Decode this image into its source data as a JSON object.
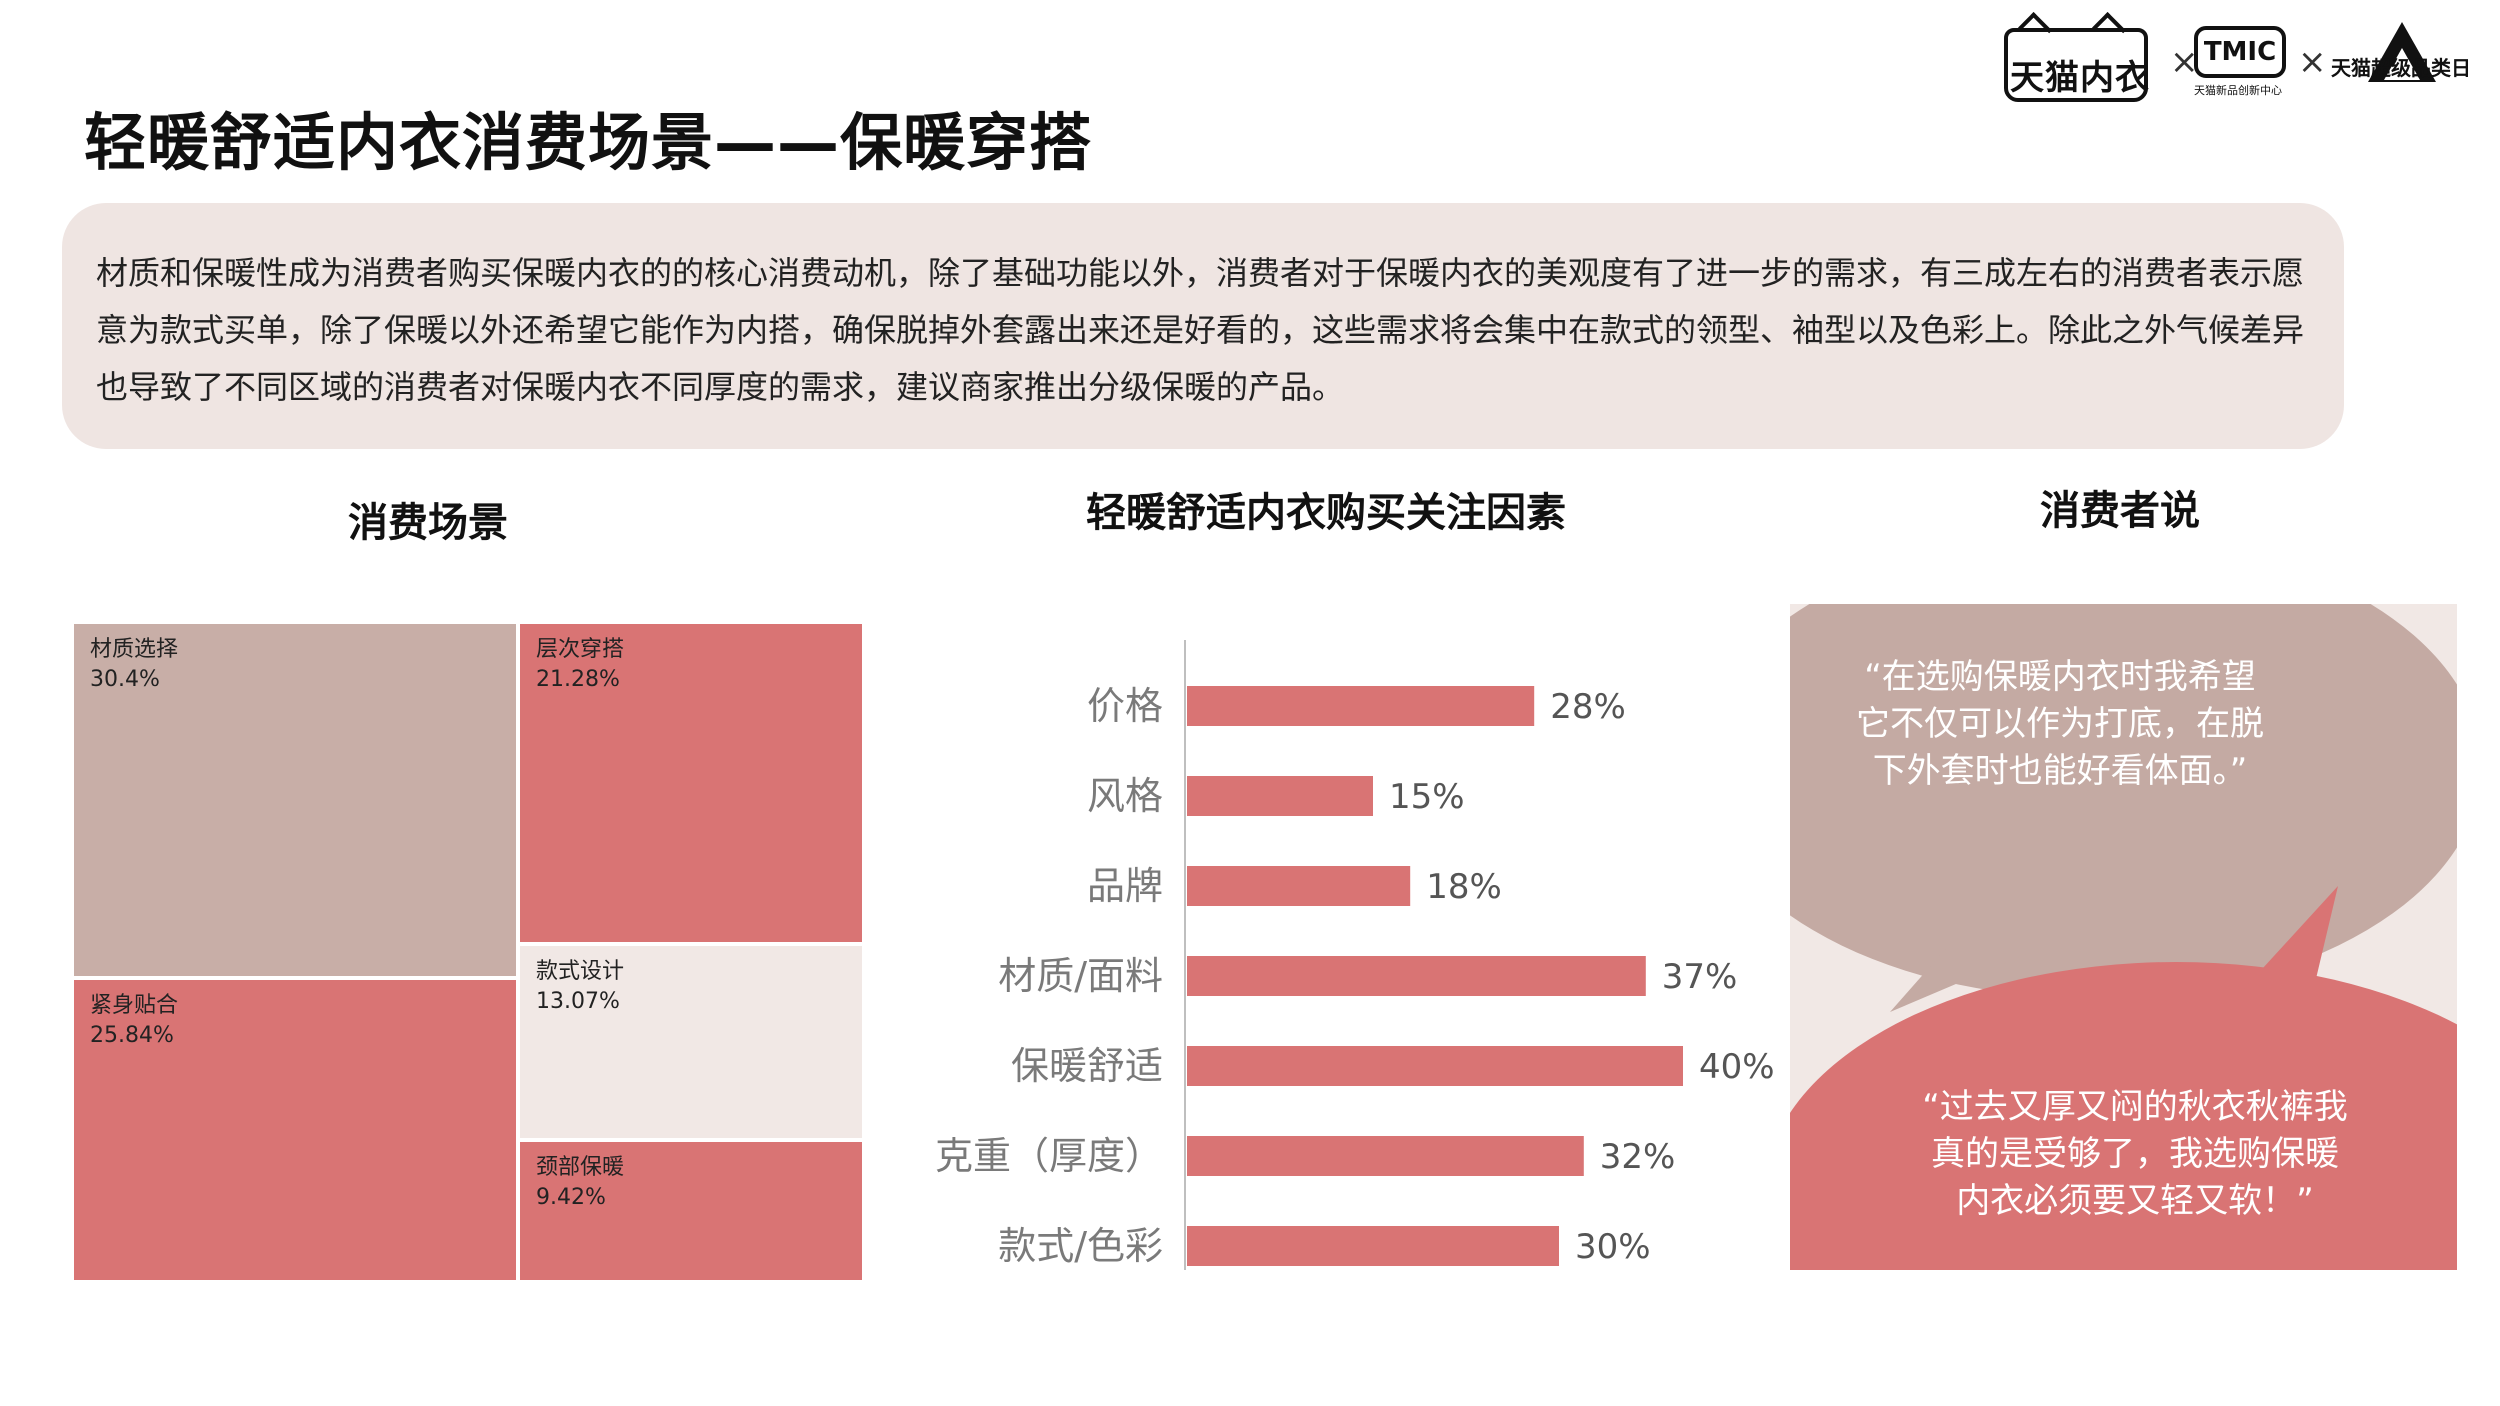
{
  "header": {
    "logos": {
      "tmall": "天猫内衣",
      "tmic": "TMIC",
      "tmic_sub": "天猫新品创新中心",
      "super_category": "天猫超级品类日",
      "separator": "×"
    },
    "title": "轻暖舒适内衣消费场景——保暖穿搭"
  },
  "summary": {
    "text": "材质和保暖性成为消费者购买保暖内衣的的核心消费动机，除了基础功能以外，消费者对于保暖内衣的美观度有了进一步的需求，有三成左右的消费者表示愿意为款式买单，除了保暖以外还希望它能作为内搭，确保脱掉外套露出来还是好看的，这些需求将会集中在款式的领型、袖型以及色彩上。除此之外气候差异也导致了不同区域的消费者对保暖内衣不同厚度的需求，建议商家推出分级保暖的产品。"
  },
  "sections": {
    "scene_title": "消费场景",
    "factors_title": "轻暖舒适内衣购买关注因素",
    "voice_title": "消费者说"
  },
  "colors": {
    "bar_red": "#d97474",
    "treemap_taupe": "#c8aea7",
    "treemap_red": "#d97474",
    "treemap_light": "#f1e8e5",
    "quote_taupe": "#c4aaa3",
    "quote_red": "#d97474",
    "summary_bg": "#efe5e2"
  },
  "chart_data": [
    {
      "type": "treemap",
      "title": "消费场景",
      "items": [
        {
          "label": "材质选择",
          "value": "30.4%",
          "color": "#c8aea7"
        },
        {
          "label": "层次穿搭",
          "value": "21.28%",
          "color": "#d97474"
        },
        {
          "label": "紧身贴合",
          "value": "25.84%",
          "color": "#d97474"
        },
        {
          "label": "款式设计",
          "value": "13.07%",
          "color": "#f1e8e5"
        },
        {
          "label": "颈部保暖",
          "value": "9.42%",
          "color": "#d97474"
        }
      ]
    },
    {
      "type": "bar",
      "orientation": "horizontal",
      "title": "轻暖舒适内衣购买关注因素",
      "categories": [
        "价格",
        "风格",
        "品牌",
        "材质/面料",
        "保暖舒适",
        "克重（厚度）",
        "款式/色彩"
      ],
      "values": [
        28,
        15,
        18,
        37,
        40,
        32,
        30
      ],
      "value_labels": [
        "28%",
        "15%",
        "18%",
        "37%",
        "40%",
        "32%",
        "30%"
      ],
      "xlim": [
        0,
        40
      ],
      "grid": false,
      "color": "#d97474"
    }
  ],
  "quotes": [
    "“在选购保暖内衣时我希望它不仅可以作为打底，在脱下外套时也能好看体面。”",
    "“过去又厚又闷的秋衣秋裤我真的是受够了，我选购保暖内衣必须要又轻又软！”"
  ]
}
